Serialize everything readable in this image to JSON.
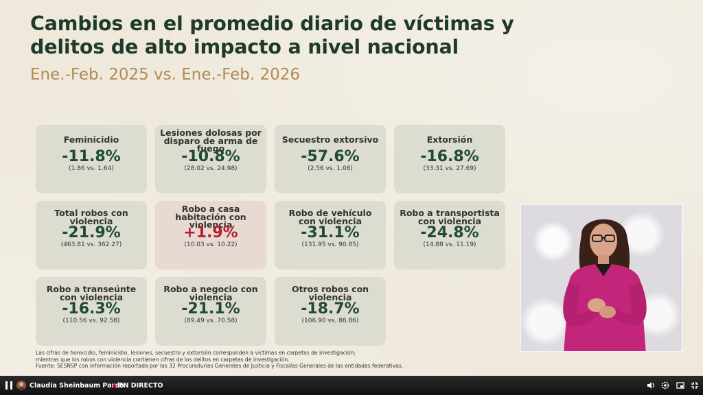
{
  "slide": {
    "title": "Cambios en el promedio diario de víctimas y delitos de alto impacto a nivel nacional",
    "subtitle": "Ene.-Feb. 2025 vs. Ene.-Feb. 2026",
    "cards": [
      {
        "name": "Feminicidio",
        "pct": "-11.8%",
        "cmp": "(1.86 vs. 1.64)"
      },
      {
        "name": "Lesiones dolosas por disparo de arma de fuego",
        "pct": "-10.8%",
        "cmp": "(28.02 vs. 24.98)"
      },
      {
        "name": "Secuestro extorsivo",
        "pct": "-57.6%",
        "cmp": "(2.56 vs. 1.08)"
      },
      {
        "name": "Extorsión",
        "pct": "-16.8%",
        "cmp": "(33.31 vs. 27.69)"
      },
      {
        "name": "Total robos con violencia",
        "pct": "-21.9%",
        "cmp": "(463.81 vs. 362.27)"
      },
      {
        "name": "Robo a casa habitación con violencia",
        "pct": "+1.9%",
        "cmp": "(10.03 vs. 10.22)"
      },
      {
        "name": "Robo de vehículo con violencia",
        "pct": "-31.1%",
        "cmp": "(131.95 vs. 90.85)"
      },
      {
        "name": "Robo a transportista con violencia",
        "pct": "-24.8%",
        "cmp": "(14.88 vs. 11.19)"
      },
      {
        "name": "Robo a transeúnte con violencia",
        "pct": "-16.3%",
        "cmp": "(110.56 vs. 92.58)"
      },
      {
        "name": "Robo a negocio con violencia",
        "pct": "-21.1%",
        "cmp": "(89.49 vs. 70.58)"
      },
      {
        "name": "Otros robos con violencia",
        "pct": "-18.7%",
        "cmp": "(106.90 vs. 86.86)"
      }
    ],
    "footer": [
      "Las cifras de homicidio, feminicidio, lesiones, secuestro y extorsión corresponden a víctimas en carpetas de investigación;",
      "mientras que los robos con violencia contienen cifras de los delitos en carpetas de investigación.",
      "Fuente: SESNSP con información reportada por las 32 Procuradurías Generales de Justicia y Fiscalías Generales de las entidades federativas."
    ]
  },
  "player": {
    "channel_name": "Claudia Sheinbaum Pardo",
    "live_label": "EN DIRECTO",
    "icons": [
      "pause-icon",
      "volume-icon",
      "settings-icon",
      "miniplayer-icon",
      "fullscreen-exit-icon"
    ],
    "progress_fraction": 1.0
  },
  "colors": {
    "title": "#1f3a2b",
    "subtitle": "#b08a55",
    "card_bg": "#dcdcd0",
    "card_up_bg": "#e8d9d2",
    "decrease": "#1f4a33",
    "increase": "#b41e2e",
    "live_dot": "#d0021b"
  }
}
